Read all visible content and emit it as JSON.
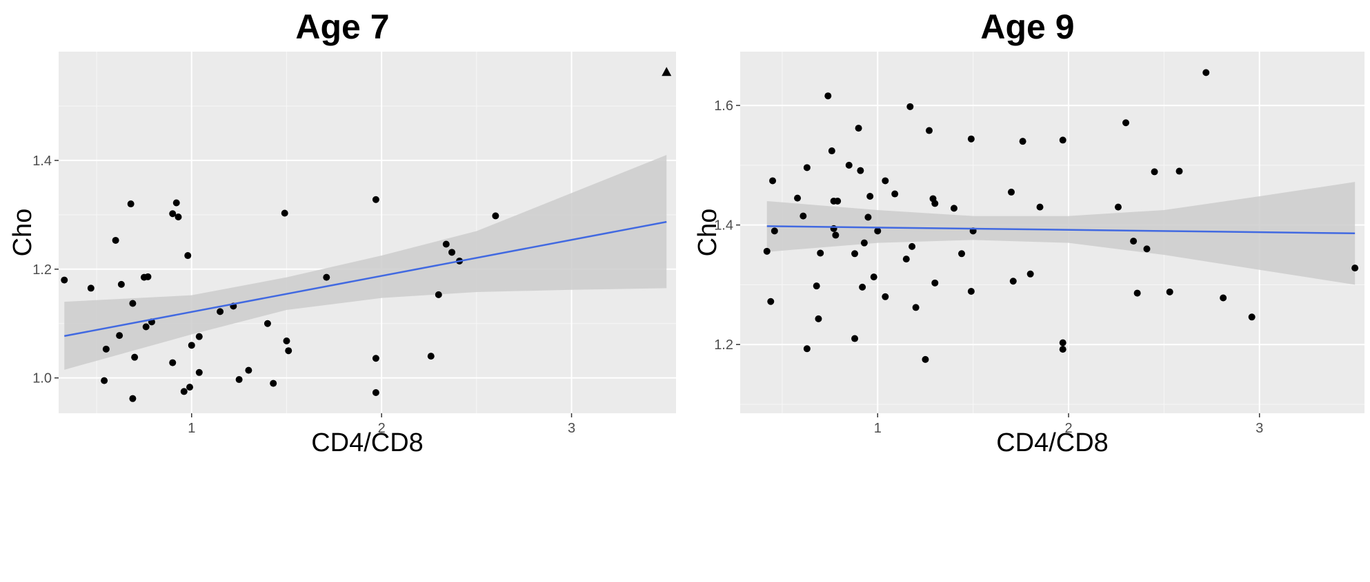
{
  "chart_data": [
    {
      "type": "scatter",
      "title": "Age 7",
      "xlabel": "CD4/CD8",
      "ylabel": "Cho",
      "xlim": [
        0.3,
        3.55
      ],
      "ylim": [
        0.935,
        1.6
      ],
      "xticks": [
        1,
        2,
        3
      ],
      "xtick_labels": [
        "1",
        "2",
        "3"
      ],
      "yticks": [
        1.0,
        1.2,
        1.4
      ],
      "ytick_labels": [
        "1.0",
        "1.2",
        "1.4"
      ],
      "grid": true,
      "colors": {
        "panel": "#ebebeb",
        "point": "#000000",
        "fit": "#4169e1",
        "band": "#cccccc"
      },
      "points": [
        [
          0.33,
          1.18
        ],
        [
          0.47,
          1.165
        ],
        [
          0.54,
          0.995
        ],
        [
          0.55,
          1.053
        ],
        [
          0.6,
          1.253
        ],
        [
          0.62,
          1.078
        ],
        [
          0.63,
          1.172
        ],
        [
          0.68,
          1.32
        ],
        [
          0.69,
          1.137
        ],
        [
          0.69,
          0.962
        ],
        [
          0.7,
          1.038
        ],
        [
          0.75,
          1.185
        ],
        [
          0.76,
          1.094
        ],
        [
          0.77,
          1.186
        ],
        [
          0.79,
          1.103
        ],
        [
          0.9,
          1.028
        ],
        [
          0.9,
          1.302
        ],
        [
          0.92,
          1.322
        ],
        [
          0.93,
          1.296
        ],
        [
          0.96,
          0.975
        ],
        [
          0.98,
          1.225
        ],
        [
          0.99,
          0.983
        ],
        [
          1.0,
          1.06
        ],
        [
          1.04,
          1.076
        ],
        [
          1.04,
          1.01
        ],
        [
          1.15,
          1.122
        ],
        [
          1.22,
          1.132
        ],
        [
          1.25,
          0.997
        ],
        [
          1.3,
          1.014
        ],
        [
          1.4,
          1.1
        ],
        [
          1.43,
          0.99
        ],
        [
          1.49,
          1.303
        ],
        [
          1.5,
          1.068
        ],
        [
          1.51,
          1.05
        ],
        [
          1.71,
          1.185
        ],
        [
          1.97,
          1.328
        ],
        [
          1.97,
          1.036
        ],
        [
          1.97,
          0.973
        ],
        [
          2.26,
          1.04
        ],
        [
          2.3,
          1.153
        ],
        [
          2.34,
          1.246
        ],
        [
          2.37,
          1.231
        ],
        [
          2.41,
          1.215
        ],
        [
          2.6,
          1.298
        ]
      ],
      "outlier": {
        "x": 3.5,
        "y": 1.563,
        "shape": "triangle"
      },
      "fit": {
        "x": [
          0.33,
          3.5
        ],
        "y": [
          1.077,
          1.287
        ]
      },
      "band": {
        "x": [
          0.33,
          1.0,
          1.5,
          2.0,
          2.5,
          3.0,
          3.5
        ],
        "lower": [
          1.015,
          1.08,
          1.125,
          1.147,
          1.158,
          1.162,
          1.165
        ],
        "upper": [
          1.14,
          1.152,
          1.185,
          1.225,
          1.27,
          1.34,
          1.41
        ]
      }
    },
    {
      "type": "scatter",
      "title": "Age 9",
      "xlabel": "CD4/CD8",
      "ylabel": "Cho",
      "xlim": [
        0.28,
        3.55
      ],
      "ylim": [
        1.085,
        1.69
      ],
      "xticks": [
        1,
        2,
        3
      ],
      "xtick_labels": [
        "1",
        "2",
        "3"
      ],
      "yticks": [
        1.2,
        1.4,
        1.6
      ],
      "ytick_labels": [
        "1.2",
        "1.4",
        "1.6"
      ],
      "grid": true,
      "colors": {
        "panel": "#ebebeb",
        "point": "#000000",
        "fit": "#4169e1",
        "band": "#cccccc"
      },
      "points": [
        [
          0.42,
          1.356
        ],
        [
          0.44,
          1.272
        ],
        [
          0.45,
          1.474
        ],
        [
          0.46,
          1.39
        ],
        [
          0.58,
          1.445
        ],
        [
          0.61,
          1.415
        ],
        [
          0.63,
          1.193
        ],
        [
          0.63,
          1.496
        ],
        [
          0.68,
          1.298
        ],
        [
          0.69,
          1.243
        ],
        [
          0.7,
          1.353
        ],
        [
          0.74,
          1.616
        ],
        [
          0.76,
          1.524
        ],
        [
          0.77,
          1.44
        ],
        [
          0.77,
          1.394
        ],
        [
          0.78,
          1.383
        ],
        [
          0.79,
          1.44
        ],
        [
          0.85,
          1.5
        ],
        [
          0.88,
          1.352
        ],
        [
          0.88,
          1.21
        ],
        [
          0.9,
          1.562
        ],
        [
          0.91,
          1.491
        ],
        [
          0.92,
          1.296
        ],
        [
          0.93,
          1.37
        ],
        [
          0.95,
          1.413
        ],
        [
          0.96,
          1.448
        ],
        [
          0.98,
          1.313
        ],
        [
          1.0,
          1.39
        ],
        [
          1.04,
          1.28
        ],
        [
          1.04,
          1.474
        ],
        [
          1.09,
          1.452
        ],
        [
          1.15,
          1.343
        ],
        [
          1.17,
          1.598
        ],
        [
          1.18,
          1.364
        ],
        [
          1.2,
          1.262
        ],
        [
          1.25,
          1.175
        ],
        [
          1.27,
          1.558
        ],
        [
          1.29,
          1.444
        ],
        [
          1.3,
          1.303
        ],
        [
          1.3,
          1.436
        ],
        [
          1.4,
          1.428
        ],
        [
          1.44,
          1.352
        ],
        [
          1.49,
          1.544
        ],
        [
          1.49,
          1.289
        ],
        [
          1.5,
          1.39
        ],
        [
          1.7,
          1.455
        ],
        [
          1.71,
          1.306
        ],
        [
          1.76,
          1.54
        ],
        [
          1.8,
          1.318
        ],
        [
          1.85,
          1.43
        ],
        [
          1.97,
          1.542
        ],
        [
          1.97,
          1.203
        ],
        [
          1.97,
          1.192
        ],
        [
          2.26,
          1.43
        ],
        [
          2.3,
          1.571
        ],
        [
          2.34,
          1.373
        ],
        [
          2.36,
          1.286
        ],
        [
          2.41,
          1.36
        ],
        [
          2.45,
          1.489
        ],
        [
          2.53,
          1.288
        ],
        [
          2.58,
          1.49
        ],
        [
          2.72,
          1.655
        ],
        [
          2.81,
          1.278
        ],
        [
          2.96,
          1.246
        ],
        [
          3.5,
          1.328
        ]
      ],
      "fit": {
        "x": [
          0.42,
          3.5
        ],
        "y": [
          1.398,
          1.386
        ]
      },
      "band": {
        "x": [
          0.42,
          1.0,
          1.5,
          2.0,
          2.5,
          3.0,
          3.5
        ],
        "lower": [
          1.355,
          1.37,
          1.375,
          1.37,
          1.35,
          1.325,
          1.3
        ],
        "upper": [
          1.44,
          1.425,
          1.415,
          1.415,
          1.425,
          1.448,
          1.472
        ]
      }
    }
  ]
}
